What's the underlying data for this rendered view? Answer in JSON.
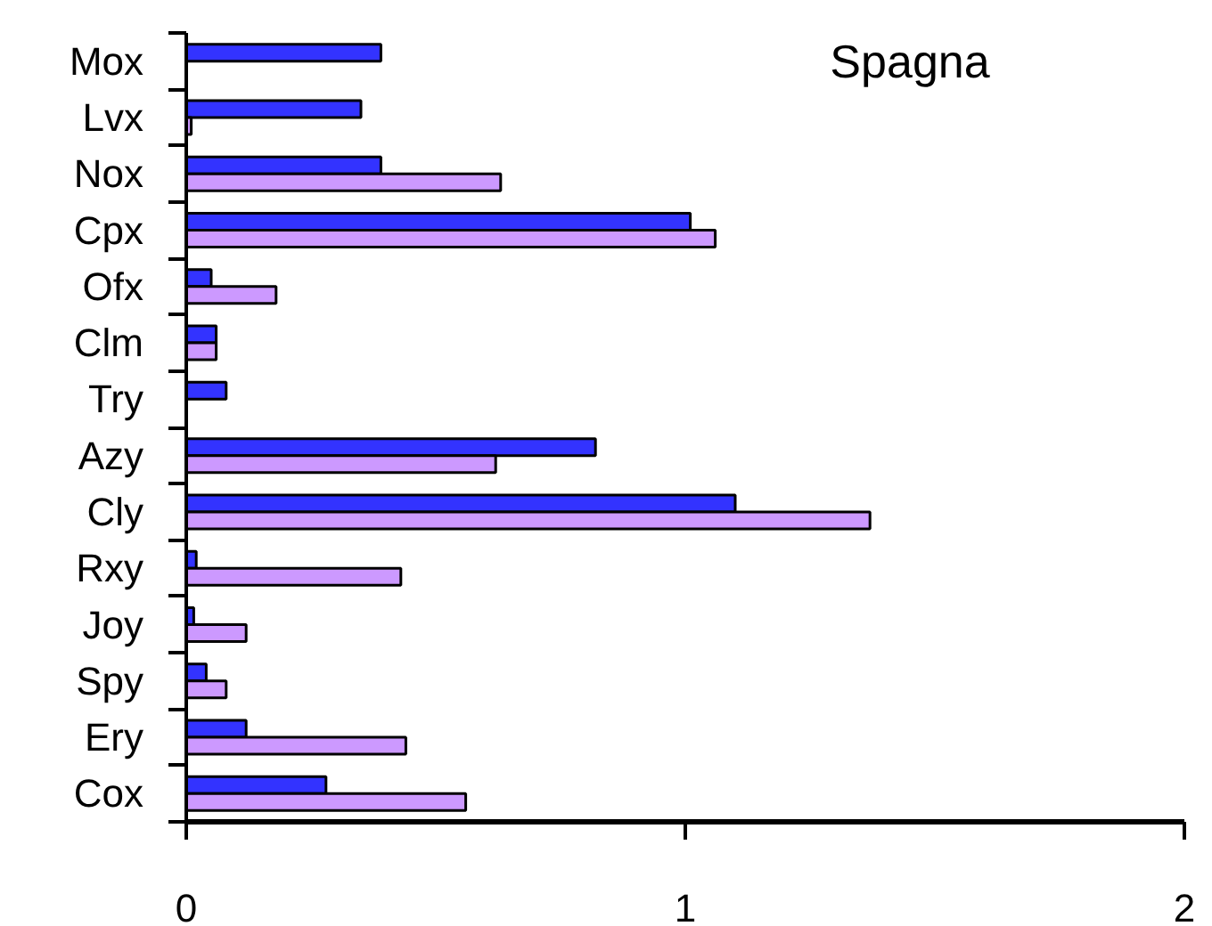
{
  "chart_data": {
    "type": "bar",
    "orientation": "horizontal",
    "title": "Spagna",
    "categories": [
      "Mox",
      "Lvx",
      "Nox",
      "Cpx",
      "Ofx",
      "Clm",
      "Try",
      "Azy",
      "Cly",
      "Rxy",
      "Joy",
      "Spy",
      "Ery",
      "Cox"
    ],
    "series": [
      {
        "color": "#3333ff",
        "values": [
          0.39,
          0.35,
          0.39,
          1.01,
          0.05,
          0.06,
          0.08,
          0.82,
          1.1,
          0.02,
          0.015,
          0.04,
          0.12,
          0.28
        ]
      },
      {
        "color": "#cc99ff",
        "values": [
          null,
          0.01,
          0.63,
          1.06,
          0.18,
          0.06,
          null,
          0.62,
          1.37,
          0.43,
          0.12,
          0.08,
          0.44,
          0.56
        ]
      }
    ],
    "xlim": [
      0,
      2
    ],
    "xticks": [
      0,
      1,
      2
    ],
    "grid": false
  }
}
